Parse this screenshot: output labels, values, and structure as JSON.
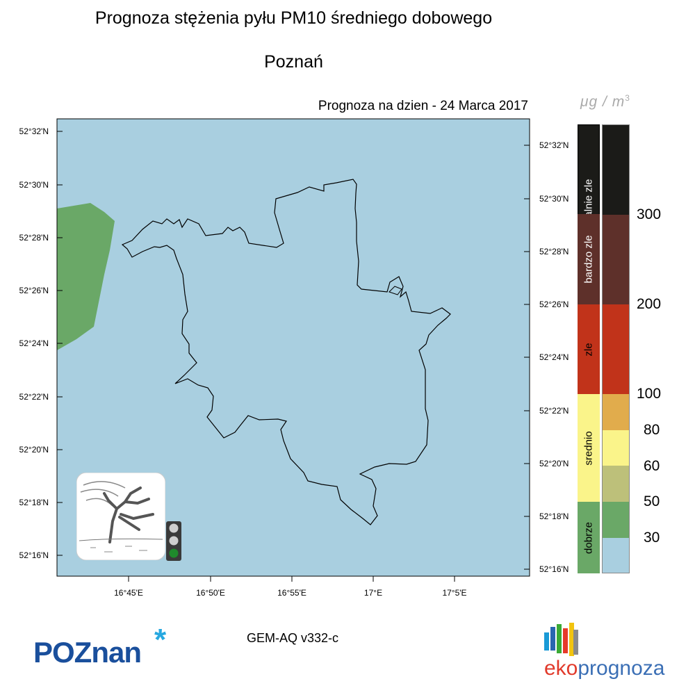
{
  "header": {
    "title": "Prognoza stężenia pyłu PM10 średniego dobowego",
    "city": "Poznań",
    "forecast_date": "Prognoza na dzien -  24 Marca 2017",
    "unit": "μg / m",
    "unit_exp": "3"
  },
  "map": {
    "lat_labels_left": [
      "52°32'N",
      "52°30'N",
      "52°28'N",
      "52°26'N",
      "52°24'N",
      "52°22'N",
      "52°20'N",
      "52°18'N",
      "52°16'N"
    ],
    "lat_labels_right": [
      "52°32'N",
      "52°30'N",
      "52°28'N",
      "52°26'N",
      "52°24'N",
      "52°22'N",
      "52°20'N",
      "52°18'N",
      "52°16'N"
    ],
    "lon_labels": [
      "16°45'E",
      "16°50'E",
      "16°55'E",
      "17°E",
      "17°5'E"
    ],
    "colors": {
      "sea": "#a9cfe0",
      "green": "#6aa867",
      "boundary": "#000000"
    }
  },
  "legend": {
    "categories": [
      {
        "label": "extremalnie zle",
        "color": "#1b1b18",
        "text_color": "#ffffff"
      },
      {
        "label": "bardzo zle",
        "color": "#5e302a",
        "text_color": "#ffffff"
      },
      {
        "label": "zle",
        "color": "#c1331a",
        "text_color": "#000000"
      },
      {
        "label": "srednio",
        "color": "#faf48a",
        "text_color": "#000000"
      },
      {
        "label": "dobrze",
        "color": "#6aa867",
        "text_color": "#000000"
      }
    ],
    "scale_colors": [
      "#1b1b18",
      "#5e302a",
      "#c1331a",
      "#e1ac4c",
      "#faf48a",
      "#bdc07a",
      "#6aa867",
      "#a9cfe0"
    ],
    "thresholds": [
      "300",
      "200",
      "100",
      "80",
      "60",
      "50",
      "30"
    ]
  },
  "icons": {
    "weather": "windy-tree-icon",
    "traffic_light": "traffic-light-icon",
    "traffic_light_state": "green"
  },
  "footer": {
    "model": "GEM-AQ v332-c",
    "poznan_logo": "POZnan",
    "poznan_star": "*",
    "eko_prefix": "eko",
    "eko_suffix": "prognoza",
    "eko_colors": [
      "#e13a2b",
      "#3b6fb5"
    ]
  }
}
